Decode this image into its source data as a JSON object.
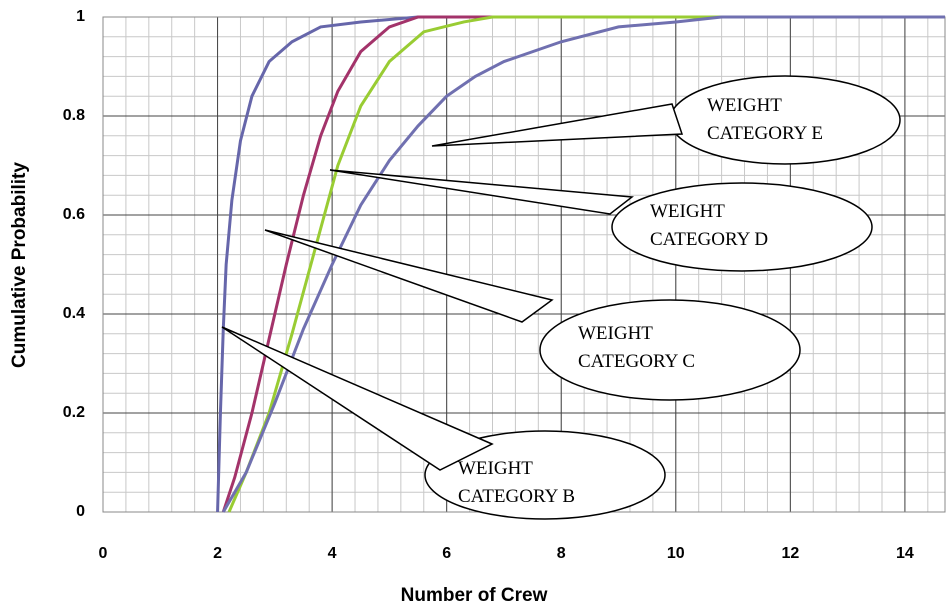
{
  "chart_data": {
    "type": "line",
    "xlabel": "Number of Crew",
    "ylabel": "Cumulative Probability",
    "xlim": [
      0,
      14.7
    ],
    "xticks": [
      0,
      2,
      4,
      6,
      8,
      10,
      12,
      14
    ],
    "ylim": [
      0,
      1
    ],
    "yticks": [
      0,
      0.2,
      0.4,
      0.6,
      0.8,
      1
    ],
    "grid": true,
    "minor_divisions": 5,
    "series": [
      {
        "name": "WEIGHT CATEGORY B",
        "color": "#6666aa",
        "x": [
          2.0,
          2.05,
          2.1,
          2.15,
          2.25,
          2.4,
          2.6,
          2.9,
          3.3,
          3.8,
          4.5,
          5.5,
          14.7
        ],
        "values": [
          0,
          0.2,
          0.37,
          0.5,
          0.63,
          0.75,
          0.84,
          0.91,
          0.95,
          0.98,
          0.99,
          1,
          1
        ]
      },
      {
        "name": "WEIGHT CATEGORY C",
        "color": "#a3336a",
        "x": [
          2.1,
          2.3,
          2.6,
          2.9,
          3.2,
          3.5,
          3.8,
          4.1,
          4.5,
          5.0,
          5.5,
          14.7
        ],
        "values": [
          0,
          0.07,
          0.2,
          0.35,
          0.5,
          0.64,
          0.76,
          0.85,
          0.93,
          0.98,
          1,
          1
        ]
      },
      {
        "name": "WEIGHT CATEGORY D",
        "color": "#99cc33",
        "x": [
          2.2,
          2.5,
          2.9,
          3.3,
          3.7,
          4.1,
          4.5,
          5.0,
          5.6,
          6.3,
          6.8,
          14.7
        ],
        "values": [
          0,
          0.08,
          0.2,
          0.36,
          0.53,
          0.7,
          0.82,
          0.91,
          0.97,
          0.99,
          1,
          1
        ]
      },
      {
        "name": "WEIGHT CATEGORY E",
        "color": "#7070b0",
        "x": [
          2.1,
          2.5,
          3.0,
          3.5,
          4.0,
          4.5,
          5.0,
          5.5,
          6.0,
          6.5,
          7.0,
          8.0,
          9.0,
          10.0,
          10.8,
          14.7
        ],
        "values": [
          0,
          0.08,
          0.22,
          0.37,
          0.5,
          0.62,
          0.71,
          0.78,
          0.84,
          0.88,
          0.91,
          0.95,
          0.98,
          0.99,
          1,
          1
        ]
      }
    ]
  }
}
